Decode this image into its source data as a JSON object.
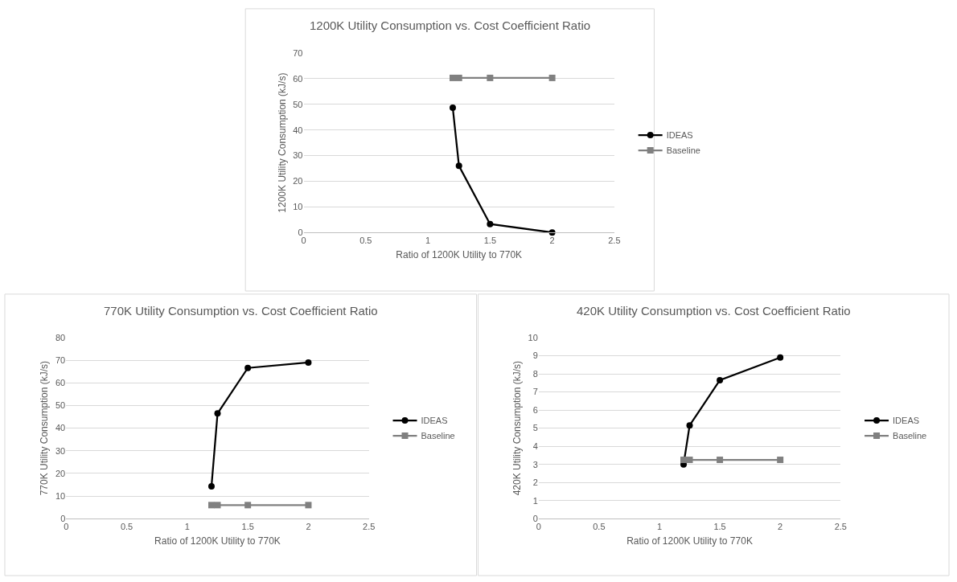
{
  "chart_data": [
    {
      "type": "line",
      "title": "1200K Utility Consumption vs. Cost Coefficient Ratio",
      "xlabel": "Ratio of 1200K Utility to 770K",
      "ylabel": "1200K Utility Consumption (kJ/s)",
      "xlim": [
        0,
        2.5
      ],
      "xticks": [
        0,
        0.5,
        1,
        1.5,
        2,
        2.5
      ],
      "ylim": [
        0,
        70
      ],
      "yticks": [
        0,
        10,
        20,
        30,
        40,
        50,
        60,
        70
      ],
      "grid": "y",
      "legend": "right",
      "series": [
        {
          "name": "IDEAS",
          "color": "#000000",
          "marker": "circle",
          "x": [
            1.2,
            1.25,
            1.5,
            2
          ],
          "values": [
            48.7,
            26,
            3.3,
            0
          ]
        },
        {
          "name": "Baseline",
          "color": "#808080",
          "marker": "square",
          "x": [
            1.2,
            1.25,
            1.5,
            2
          ],
          "values": [
            60.3,
            60.3,
            60.3,
            60.3
          ]
        }
      ]
    },
    {
      "type": "line",
      "title": "770K Utility Consumption vs. Cost Coefficient Ratio",
      "xlabel": "Ratio of 1200K Utility to 770K",
      "ylabel": "770K Utility Consumption (kJ/s)",
      "xlim": [
        0,
        2.5
      ],
      "xticks": [
        0,
        0.5,
        1,
        1.5,
        2,
        2.5
      ],
      "ylim": [
        0,
        80
      ],
      "yticks": [
        0,
        10,
        20,
        30,
        40,
        50,
        60,
        70,
        80
      ],
      "grid": "y",
      "legend": "right",
      "series": [
        {
          "name": "IDEAS",
          "color": "#000000",
          "marker": "circle",
          "x": [
            1.2,
            1.25,
            1.5,
            2
          ],
          "values": [
            14.3,
            46.5,
            66.6,
            69
          ]
        },
        {
          "name": "Baseline",
          "color": "#808080",
          "marker": "square",
          "x": [
            1.2,
            1.25,
            1.5,
            2
          ],
          "values": [
            6,
            6,
            6,
            6
          ]
        }
      ]
    },
    {
      "type": "line",
      "title": "420K Utility Consumption vs. Cost Coefficient Ratio",
      "xlabel": "Ratio of 1200K Utility to 770K",
      "ylabel": "420K Utility Consumption (kJ/s)",
      "xlim": [
        0,
        2.5
      ],
      "xticks": [
        0,
        0.5,
        1,
        1.5,
        2,
        2.5
      ],
      "ylim": [
        0,
        10
      ],
      "yticks": [
        0,
        1,
        2,
        3,
        4,
        5,
        6,
        7,
        8,
        9,
        10
      ],
      "grid": "y",
      "legend": "right",
      "series": [
        {
          "name": "IDEAS",
          "color": "#000000",
          "marker": "circle",
          "x": [
            1.2,
            1.25,
            1.5,
            2
          ],
          "values": [
            3.0,
            5.15,
            7.65,
            8.9
          ]
        },
        {
          "name": "Baseline",
          "color": "#808080",
          "marker": "square",
          "x": [
            1.2,
            1.25,
            1.5,
            2
          ],
          "values": [
            3.25,
            3.25,
            3.25,
            3.25
          ]
        }
      ]
    }
  ]
}
